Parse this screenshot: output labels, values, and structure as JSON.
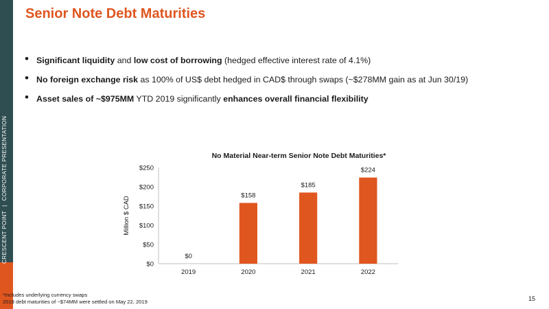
{
  "sidebar": {
    "left_text": "CRESCENT POINT",
    "separator": "|",
    "right_text": "CORPORATE PRESENTATION",
    "colors": {
      "background": "#2f4e52",
      "accent": "#e0561f"
    }
  },
  "title": "Senior Note Debt Maturities",
  "bullets": [
    {
      "runs": [
        {
          "t": "Significant liquidity",
          "b": true
        },
        {
          "t": " and "
        },
        {
          "t": "low cost of borrowing",
          "b": true
        },
        {
          "t": " (hedged effective interest rate of 4.1%)"
        }
      ]
    },
    {
      "runs": [
        {
          "t": "No foreign exchange risk",
          "b": true
        },
        {
          "t": " as 100% of US$ debt hedged in CAD$ through swaps (~$278MM gain as at Jun 30/19)"
        }
      ]
    },
    {
      "runs": [
        {
          "t": "Asset sales of ",
          "b": true
        },
        {
          "t": "~$975MM",
          "b": true
        },
        {
          "t": " YTD 2019 significantly "
        },
        {
          "t": "enhances overall financial flexibility",
          "b": true
        }
      ]
    }
  ],
  "chart_data": {
    "type": "bar",
    "title": "No Material Near-term Senior Note Debt Maturities*",
    "xlabel": "",
    "ylabel": "Million $ CAD",
    "categories": [
      "2019",
      "2020",
      "2021",
      "2022"
    ],
    "values": [
      0,
      158,
      185,
      224
    ],
    "data_labels": [
      "$0",
      "$158",
      "$185",
      "$224"
    ],
    "yticks": [
      0,
      50,
      100,
      150,
      200,
      250
    ],
    "ytick_labels": [
      "$0",
      "$50",
      "$100",
      "$150",
      "$200",
      "$250"
    ],
    "ylim": [
      0,
      250
    ],
    "grid": false,
    "legend": "none",
    "bar_color": "#e0561f"
  },
  "footnotes": [
    "*Includes underlying currency swaps",
    "2019 debt maturities of ~$74MM were settled on May 22, 2019"
  ],
  "page_number": "15"
}
